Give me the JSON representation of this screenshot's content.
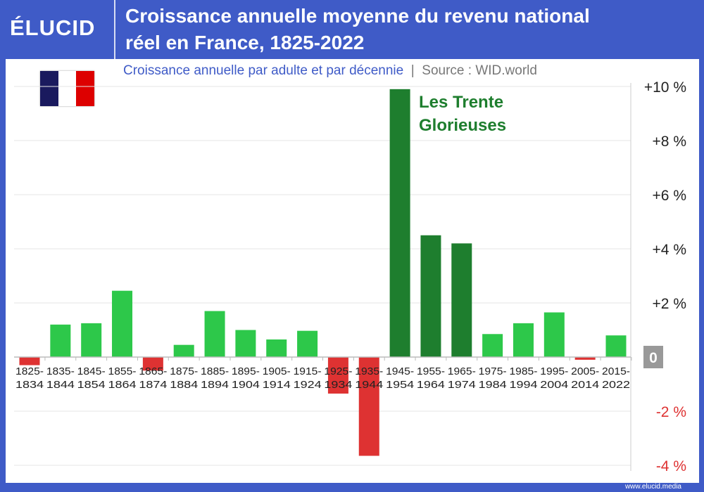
{
  "header": {
    "logo": "ÉLUCID",
    "title_line1": "Croissance annuelle moyenne du revenu national",
    "title_line2": "réel en France, 1825-2022"
  },
  "subtitle": "Croissance annuelle par adulte et par décennie",
  "source": "Source : WID.world",
  "flag": {
    "colors": [
      "#1a1a5e",
      "#ffffff",
      "#dd0000"
    ]
  },
  "footer": "www.elucid.media",
  "colors": {
    "positive": "#2dc84a",
    "highlight": "#1e7e2e",
    "negative": "#de3232",
    "background": "#3f5bc7"
  },
  "chart_data": {
    "type": "bar",
    "categories": [
      [
        "1825-",
        "1834"
      ],
      [
        "1835-",
        "1844"
      ],
      [
        "1845-",
        "1854"
      ],
      [
        "1855-",
        "1864"
      ],
      [
        "1865-",
        "1874"
      ],
      [
        "1875-",
        "1884"
      ],
      [
        "1885-",
        "1894"
      ],
      [
        "1895-",
        "1904"
      ],
      [
        "1905-",
        "1914"
      ],
      [
        "1915-",
        "1924"
      ],
      [
        "1925-",
        "1934"
      ],
      [
        "1935-",
        "1944"
      ],
      [
        "1945-",
        "1954"
      ],
      [
        "1955-",
        "1964"
      ],
      [
        "1965-",
        "1974"
      ],
      [
        "1975-",
        "1984"
      ],
      [
        "1985-",
        "1994"
      ],
      [
        "1995-",
        "2004"
      ],
      [
        "2005-",
        "2014"
      ],
      [
        "2015-",
        "2022"
      ]
    ],
    "values": [
      -0.3,
      1.2,
      1.25,
      2.45,
      -0.5,
      0.45,
      1.7,
      1.0,
      0.65,
      0.97,
      -1.35,
      -3.65,
      9.9,
      4.5,
      4.2,
      0.85,
      1.25,
      1.65,
      -0.1,
      0.8
    ],
    "highlighted": [
      "1945-1954",
      "1955-1964",
      "1965-1974"
    ],
    "annotation": [
      "Les Trente",
      "Glorieuses"
    ],
    "ylim": [
      -4,
      10
    ],
    "yticks": [
      {
        "v": 10,
        "label": "+10 %"
      },
      {
        "v": 8,
        "label": "+8 %"
      },
      {
        "v": 6,
        "label": "+6 %"
      },
      {
        "v": 4,
        "label": "+4 %"
      },
      {
        "v": 2,
        "label": "+2 %"
      },
      {
        "v": 0,
        "label": "0"
      },
      {
        "v": -2,
        "label": "-2 %"
      },
      {
        "v": -4,
        "label": "-4 %"
      }
    ],
    "grid": true,
    "axis_position": "right"
  }
}
